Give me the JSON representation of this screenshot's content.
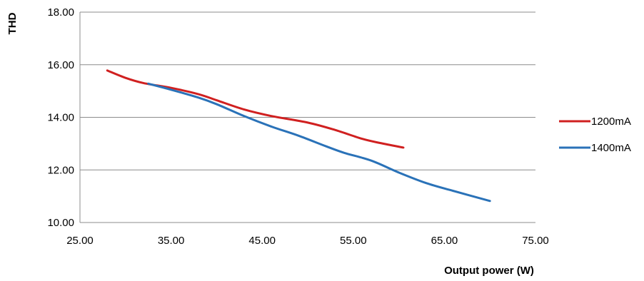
{
  "chart_data": {
    "type": "line",
    "xlabel": "Output power (W)",
    "ylabel": "THD",
    "xlim": [
      25,
      75
    ],
    "ylim": [
      10,
      18
    ],
    "xticks": [
      25,
      35,
      45,
      55,
      65,
      75
    ],
    "yticks": [
      10,
      12,
      14,
      16,
      18
    ],
    "x_tick_labels": [
      "25.00",
      "35.00",
      "45.00",
      "55.00",
      "65.00",
      "75.00"
    ],
    "y_tick_labels": [
      "10.00",
      "12.00",
      "14.00",
      "16.00",
      "18.00"
    ],
    "grid": "horizontal",
    "legend_position": "right",
    "series": [
      {
        "name": "1200mA",
        "color": "#d02020",
        "points": [
          [
            28.0,
            15.78
          ],
          [
            30.0,
            15.5
          ],
          [
            32.0,
            15.3
          ],
          [
            35.0,
            15.12
          ],
          [
            38.0,
            14.88
          ],
          [
            40.0,
            14.65
          ],
          [
            43.0,
            14.3
          ],
          [
            46.0,
            14.05
          ],
          [
            50.0,
            13.8
          ],
          [
            53.0,
            13.52
          ],
          [
            56.0,
            13.18
          ],
          [
            58.0,
            13.02
          ],
          [
            60.5,
            12.85
          ]
        ]
      },
      {
        "name": "1400mA",
        "color": "#2a72b8",
        "points": [
          [
            32.5,
            15.28
          ],
          [
            35.0,
            15.05
          ],
          [
            38.0,
            14.75
          ],
          [
            40.0,
            14.5
          ],
          [
            43.0,
            14.05
          ],
          [
            46.0,
            13.65
          ],
          [
            49.0,
            13.3
          ],
          [
            52.0,
            12.9
          ],
          [
            54.0,
            12.65
          ],
          [
            57.0,
            12.35
          ],
          [
            60.0,
            11.9
          ],
          [
            63.0,
            11.5
          ],
          [
            66.0,
            11.2
          ],
          [
            70.0,
            10.82
          ]
        ]
      }
    ]
  }
}
